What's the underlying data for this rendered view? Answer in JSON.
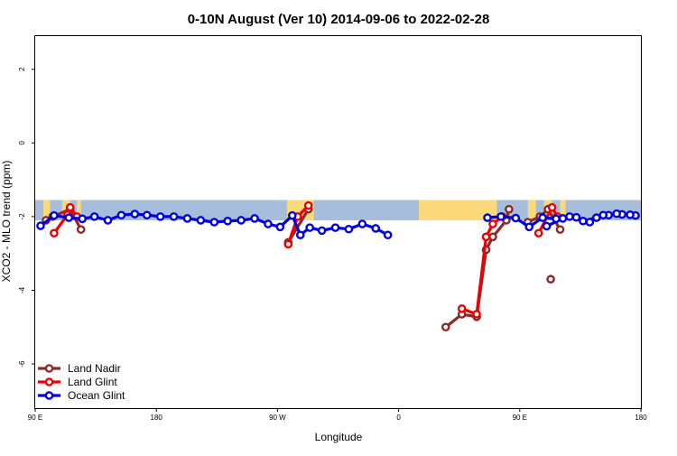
{
  "chart_data": {
    "type": "line",
    "title": "0-10N August (Ver 10)   2014-09-06 to 2022-02-28",
    "xlabel": "Longitude",
    "ylabel": "XCO2 - MLO trend (ppm)",
    "xlim": [
      90,
      540
    ],
    "ylim": [
      -7.2,
      2.9
    ],
    "xticks": [
      {
        "value": 90,
        "label": "90 E"
      },
      {
        "value": 180,
        "label": "180"
      },
      {
        "value": 270,
        "label": "90 W"
      },
      {
        "value": 360,
        "label": "0"
      },
      {
        "value": 450,
        "label": "90 E"
      },
      {
        "value": 540,
        "label": "180"
      }
    ],
    "yticks": [
      {
        "value": -6,
        "label": "-6"
      },
      {
        "value": -4,
        "label": "-4"
      },
      {
        "value": -2,
        "label": "-2"
      },
      {
        "value": 0,
        "label": "0"
      },
      {
        "value": 2,
        "label": "2"
      }
    ],
    "map_band": {
      "ymin": -2.1,
      "ymax": -1.55,
      "ocean_color": "#a6bddb",
      "land_color": "#fcd97a"
    },
    "legend_position": "bottom-left",
    "series": [
      {
        "name": "Land Nadir",
        "color": "#8b2a2a",
        "segments": [
          [
            [
              98,
              -2.1
            ],
            [
              103,
              -2.0
            ],
            [
              116,
              -1.8
            ],
            [
              124,
              -2.35
            ]
          ],
          [
            [
              278,
              -2.7
            ],
            [
              293,
              -1.8
            ]
          ],
          [
            [
              395,
              -5.0
            ],
            [
              407,
              -4.65
            ],
            [
              418,
              -4.72
            ],
            [
              425,
              -2.9
            ],
            [
              430,
              -2.55
            ],
            [
              440,
              -2.1
            ],
            [
              442,
              -1.8
            ]
          ],
          [
            [
              473,
              -3.7
            ]
          ],
          [
            [
              456,
              -2.15
            ],
            [
              465,
              -2.0
            ],
            [
              471,
              -1.8
            ],
            [
              480,
              -2.35
            ]
          ]
        ]
      },
      {
        "name": "Land Glint",
        "color": "#ee0000",
        "segments": [
          [
            [
              104,
              -2.45
            ],
            [
              114,
              -1.95
            ],
            [
              116,
              -1.75
            ],
            [
              121,
              -2.0
            ]
          ],
          [
            [
              278,
              -2.75
            ],
            [
              285,
              -2.0
            ],
            [
              293,
              -1.7
            ]
          ],
          [
            [
              407,
              -4.5
            ],
            [
              418,
              -4.65
            ],
            [
              425,
              -2.55
            ],
            [
              430,
              -2.2
            ],
            [
              437,
              -2.0
            ]
          ],
          [
            [
              464,
              -2.45
            ],
            [
              474,
              -1.75
            ],
            [
              478,
              -2.0
            ]
          ]
        ]
      },
      {
        "name": "Ocean Glint",
        "color": "#0000dd",
        "segments": [
          [
            [
              94,
              -2.25
            ],
            [
              104,
              -1.97
            ],
            [
              115,
              -2.03
            ],
            [
              125,
              -2.06
            ],
            [
              134,
              -2.0
            ],
            [
              144,
              -2.1
            ],
            [
              154,
              -1.96
            ],
            [
              164,
              -1.93
            ],
            [
              173,
              -1.96
            ],
            [
              183,
              -2.0
            ],
            [
              193,
              -2.0
            ],
            [
              203,
              -2.05
            ],
            [
              213,
              -2.1
            ],
            [
              223,
              -2.15
            ],
            [
              233,
              -2.12
            ],
            [
              243,
              -2.1
            ],
            [
              253,
              -2.05
            ],
            [
              263,
              -2.2
            ],
            [
              272,
              -2.28
            ],
            [
              281,
              -1.97
            ],
            [
              287,
              -2.5
            ],
            [
              294,
              -2.3
            ],
            [
              303,
              -2.38
            ],
            [
              313,
              -2.3
            ],
            [
              323,
              -2.34
            ],
            [
              333,
              -2.2
            ],
            [
              343,
              -2.32
            ],
            [
              352,
              -2.5
            ]
          ],
          [
            [
              426,
              -2.03
            ],
            [
              436,
              -2.0
            ],
            [
              447,
              -2.04
            ],
            [
              457,
              -2.28
            ],
            [
              467,
              -2.03
            ],
            [
              477,
              -2.06
            ],
            [
              487,
              -2.0
            ],
            [
              497,
              -2.12
            ],
            [
              507,
              -2.03
            ],
            [
              516,
              -1.96
            ],
            [
              526,
              -1.94
            ],
            [
              536,
              -1.97
            ]
          ],
          [
            [
              470,
              -2.26
            ],
            [
              482,
              -2.05
            ],
            [
              492,
              -2.02
            ],
            [
              502,
              -2.15
            ],
            [
              512,
              -1.96
            ],
            [
              522,
              -1.92
            ],
            [
              532,
              -1.95
            ]
          ]
        ]
      }
    ]
  }
}
